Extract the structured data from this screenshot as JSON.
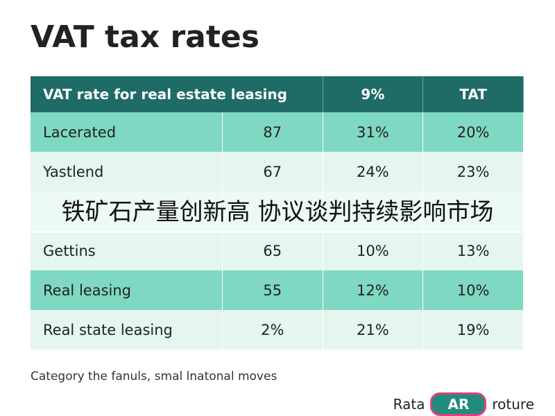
{
  "title": "VAT tax rates",
  "table": {
    "header": [
      "VAT rate for real estate leasing",
      "9%",
      "TAT"
    ],
    "rows": [
      [
        "Lacerated",
        "87",
        "31%",
        "20%"
      ],
      [
        "Yastlend",
        "67",
        "24%",
        "23%"
      ],
      [
        "Gettins",
        "65",
        "10%",
        "13%"
      ],
      [
        "Real leasing",
        "55",
        "12%",
        "10%"
      ],
      [
        "Real state leasing",
        "2%",
        "21%",
        "19%"
      ]
    ]
  },
  "footnote": "Category the fanuls, smal lnatonal moves",
  "legend": {
    "left": "Rata",
    "badge": "AR",
    "right": "roture"
  },
  "overlay": "铁矿石产量创新高 协议谈判持续影响市场"
}
